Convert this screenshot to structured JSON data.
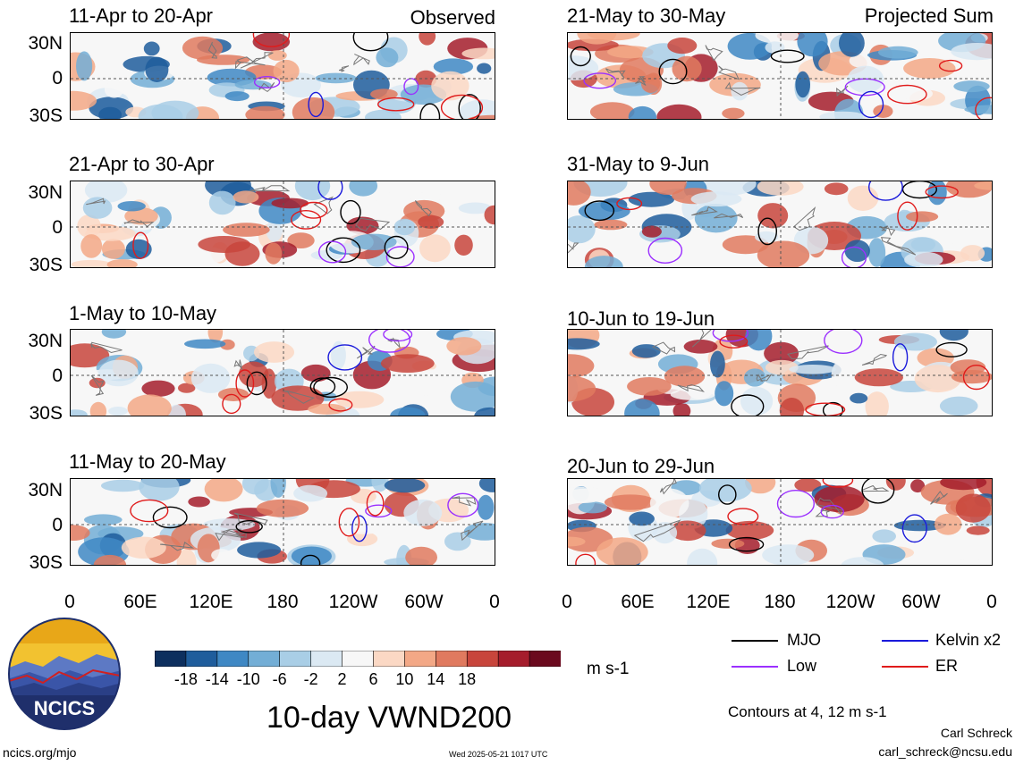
{
  "panels_left": [
    {
      "title": "11-Apr to 20-Apr",
      "tag": "Observed"
    },
    {
      "title": "21-Apr to 30-Apr",
      "tag": ""
    },
    {
      "title": "1-May to 10-May",
      "tag": ""
    },
    {
      "title": "11-May to 20-May",
      "tag": ""
    }
  ],
  "panels_right": [
    {
      "title": "21-May to 30-May",
      "tag": "Projected Sum"
    },
    {
      "title": "31-May to 9-Jun",
      "tag": ""
    },
    {
      "title": "10-Jun to 19-Jun",
      "tag": ""
    },
    {
      "title": "20-Jun to 29-Jun",
      "tag": ""
    }
  ],
  "lat_ticks": [
    "30N",
    "0",
    "30S"
  ],
  "lon_ticks": [
    "0",
    "60E",
    "120E",
    "180",
    "120W",
    "60W",
    "0"
  ],
  "colorbar": {
    "labels": [
      "-18",
      "-14",
      "-10",
      "-6",
      "-2",
      "2",
      "6",
      "10",
      "14",
      "18"
    ],
    "colors": [
      "#0d2f5e",
      "#1f5d9c",
      "#3f88c4",
      "#73aed6",
      "#a9cee6",
      "#dbe9f3",
      "#f7f7f7",
      "#fbd8c4",
      "#f3a886",
      "#e07a5f",
      "#c8453c",
      "#a51d2c",
      "#6b0a1e"
    ],
    "units": "m s-1"
  },
  "title": "10-day VWND200",
  "legend": [
    {
      "label": "MJO",
      "color": "#000000"
    },
    {
      "label": "Kelvin x2",
      "color": "#1a1adb"
    },
    {
      "label": "Low",
      "color": "#9b30ff"
    },
    {
      "label": "ER",
      "color": "#e01b1b"
    }
  ],
  "contour_note": "Contours at 4, 12 m s-1",
  "credit_name": "Carl Schreck",
  "credit_email": "carl_schreck@ncsu.edu",
  "footer_url": "ncics.org/mjo",
  "footer_timestamp": "Wed 2025-05-21 1017 UTC",
  "logo_text": "NCICS"
}
